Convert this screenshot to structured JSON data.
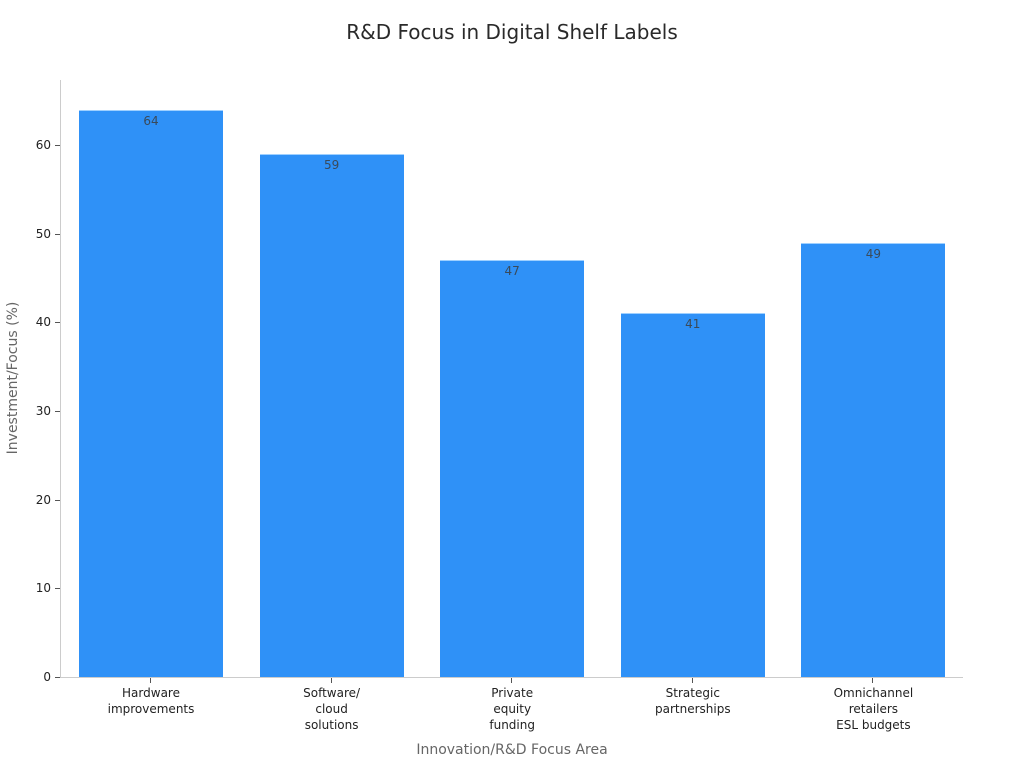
{
  "chart_data": {
    "type": "bar",
    "title": "R&D Focus in Digital Shelf Labels",
    "xlabel": "Innovation/R&D Focus Area",
    "ylabel": "Investment/Focus (%)",
    "categories": [
      "Hardware\nimprovements",
      "Software/\ncloud\nsolutions",
      "Private\nequity\nfunding",
      "Strategic\npartnerships",
      "Omnichannel\nretailers\nESL budgets"
    ],
    "values": [
      64,
      59,
      47,
      41,
      49
    ],
    "data_labels": [
      "64",
      "59",
      "47",
      "41",
      "49"
    ],
    "yticks": [
      "0",
      "10",
      "20",
      "30",
      "40",
      "50",
      "60"
    ],
    "ylim": [
      0,
      67.3
    ],
    "grid": false,
    "legend": null,
    "bar_color": "#2f91f7"
  }
}
